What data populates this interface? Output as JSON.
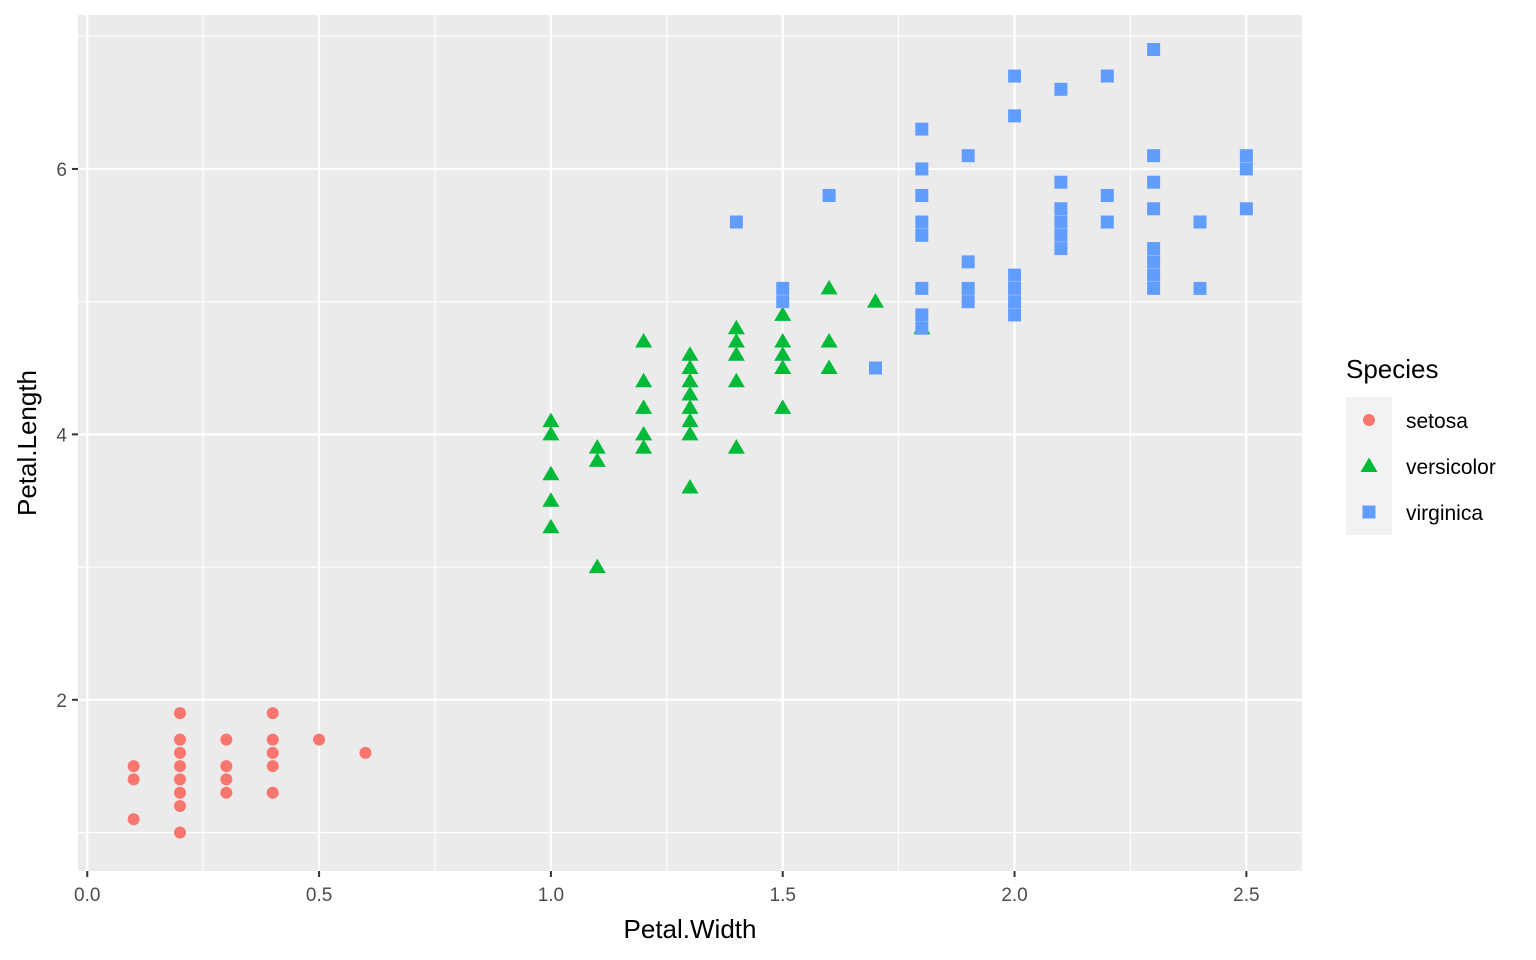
{
  "chart_data": {
    "type": "scatter",
    "xlabel": "Petal.Width",
    "ylabel": "Petal.Length",
    "xlim": [
      -0.02,
      2.62
    ],
    "ylim": [
      0.71,
      7.16
    ],
    "x_ticks": [
      0.0,
      0.5,
      1.0,
      1.5,
      2.0,
      2.5
    ],
    "x_tick_labels": [
      "0.0",
      "0.5",
      "1.0",
      "1.5",
      "2.0",
      "2.5"
    ],
    "y_ticks": [
      2,
      4,
      6
    ],
    "y_tick_labels": [
      "2",
      "4",
      "6"
    ],
    "grid": true,
    "legend": {
      "title": "Species",
      "position": "right"
    },
    "series": [
      {
        "name": "setosa",
        "color": "#F8766D",
        "shape": "circle",
        "points": [
          [
            0.1,
            1.1
          ],
          [
            0.1,
            1.4
          ],
          [
            0.1,
            1.5
          ],
          [
            0.2,
            1.0
          ],
          [
            0.2,
            1.2
          ],
          [
            0.2,
            1.3
          ],
          [
            0.2,
            1.4
          ],
          [
            0.2,
            1.5
          ],
          [
            0.2,
            1.6
          ],
          [
            0.2,
            1.7
          ],
          [
            0.2,
            1.9
          ],
          [
            0.3,
            1.3
          ],
          [
            0.3,
            1.4
          ],
          [
            0.3,
            1.5
          ],
          [
            0.3,
            1.7
          ],
          [
            0.4,
            1.3
          ],
          [
            0.4,
            1.5
          ],
          [
            0.4,
            1.6
          ],
          [
            0.4,
            1.7
          ],
          [
            0.4,
            1.9
          ],
          [
            0.5,
            1.7
          ],
          [
            0.6,
            1.6
          ]
        ]
      },
      {
        "name": "versicolor",
        "color": "#00BA38",
        "shape": "triangle",
        "points": [
          [
            1.0,
            3.3
          ],
          [
            1.0,
            3.5
          ],
          [
            1.0,
            3.7
          ],
          [
            1.0,
            4.0
          ],
          [
            1.0,
            4.1
          ],
          [
            1.1,
            3.0
          ],
          [
            1.1,
            3.8
          ],
          [
            1.1,
            3.9
          ],
          [
            1.2,
            3.9
          ],
          [
            1.2,
            4.0
          ],
          [
            1.2,
            4.2
          ],
          [
            1.2,
            4.4
          ],
          [
            1.2,
            4.7
          ],
          [
            1.3,
            3.6
          ],
          [
            1.3,
            4.0
          ],
          [
            1.3,
            4.1
          ],
          [
            1.3,
            4.2
          ],
          [
            1.3,
            4.3
          ],
          [
            1.3,
            4.4
          ],
          [
            1.3,
            4.5
          ],
          [
            1.3,
            4.6
          ],
          [
            1.4,
            3.9
          ],
          [
            1.4,
            4.4
          ],
          [
            1.4,
            4.6
          ],
          [
            1.4,
            4.7
          ],
          [
            1.4,
            4.8
          ],
          [
            1.5,
            4.2
          ],
          [
            1.5,
            4.5
          ],
          [
            1.5,
            4.6
          ],
          [
            1.5,
            4.7
          ],
          [
            1.5,
            4.9
          ],
          [
            1.6,
            4.5
          ],
          [
            1.6,
            4.7
          ],
          [
            1.6,
            5.1
          ],
          [
            1.7,
            5.0
          ],
          [
            1.8,
            4.8
          ]
        ]
      },
      {
        "name": "virginica",
        "color": "#619CFF",
        "shape": "square",
        "points": [
          [
            1.4,
            5.6
          ],
          [
            1.5,
            5.0
          ],
          [
            1.5,
            5.1
          ],
          [
            1.6,
            5.8
          ],
          [
            1.7,
            4.5
          ],
          [
            1.8,
            4.8
          ],
          [
            1.8,
            4.9
          ],
          [
            1.8,
            5.1
          ],
          [
            1.8,
            5.5
          ],
          [
            1.8,
            5.6
          ],
          [
            1.8,
            5.8
          ],
          [
            1.8,
            6.0
          ],
          [
            1.8,
            6.3
          ],
          [
            1.9,
            5.0
          ],
          [
            1.9,
            5.1
          ],
          [
            1.9,
            5.3
          ],
          [
            1.9,
            6.1
          ],
          [
            2.0,
            4.9
          ],
          [
            2.0,
            5.0
          ],
          [
            2.0,
            5.1
          ],
          [
            2.0,
            5.2
          ],
          [
            2.0,
            6.4
          ],
          [
            2.0,
            6.7
          ],
          [
            2.1,
            5.4
          ],
          [
            2.1,
            5.5
          ],
          [
            2.1,
            5.6
          ],
          [
            2.1,
            5.7
          ],
          [
            2.1,
            5.9
          ],
          [
            2.1,
            6.6
          ],
          [
            2.2,
            5.6
          ],
          [
            2.2,
            5.8
          ],
          [
            2.2,
            6.7
          ],
          [
            2.3,
            5.1
          ],
          [
            2.3,
            5.2
          ],
          [
            2.3,
            5.3
          ],
          [
            2.3,
            5.4
          ],
          [
            2.3,
            5.7
          ],
          [
            2.3,
            5.9
          ],
          [
            2.3,
            6.1
          ],
          [
            2.3,
            6.9
          ],
          [
            2.4,
            5.1
          ],
          [
            2.4,
            5.6
          ],
          [
            2.5,
            5.7
          ],
          [
            2.5,
            6.0
          ],
          [
            2.5,
            6.1
          ]
        ]
      }
    ]
  }
}
